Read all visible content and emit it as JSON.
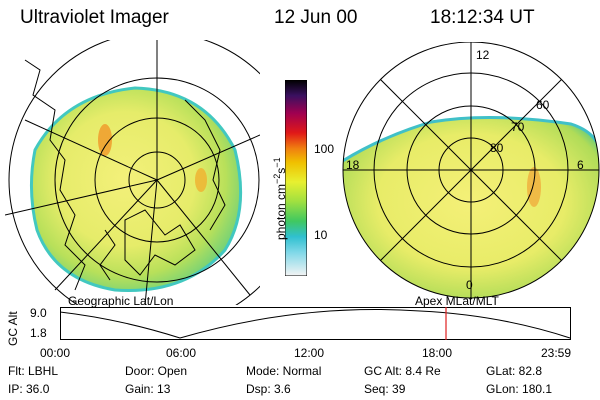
{
  "header": {
    "instrument": "Ultraviolet Imager",
    "date": "12 Jun 00",
    "time": "18:12:34 UT"
  },
  "colorbar": {
    "unit_label": "photon cm",
    "unit_exp1": "−2",
    "unit_mid": "s",
    "unit_exp2": "−1",
    "ticks": [
      "100",
      "10"
    ]
  },
  "panels": {
    "left_caption": "Geographic Lat/Lon",
    "right_caption": "Apex MLat/MLT",
    "mlt_labels": {
      "top": "12",
      "left": "18",
      "right": "6",
      "bottom": "0"
    },
    "mlat_labels": [
      "60",
      "70",
      "80"
    ]
  },
  "timeline": {
    "ylabel": "GC Alt",
    "ymax": "9.0",
    "ymin": "1.8",
    "ticks": [
      "00:00",
      "06:00",
      "12:00",
      "18:00",
      "23:59"
    ],
    "marker_time": "18:12",
    "marker_color": "#e02020"
  },
  "footer": {
    "row1": [
      "Flt: LBHL",
      "Door: Open",
      "Mode: Normal",
      "GC Alt: 8.4 Re",
      "GLat: 82.8"
    ],
    "row2": [
      "IP: 36.0",
      "Gain: 13",
      "Dsp: 3.6",
      "Seq: 39",
      "GLon: 180.1"
    ]
  }
}
